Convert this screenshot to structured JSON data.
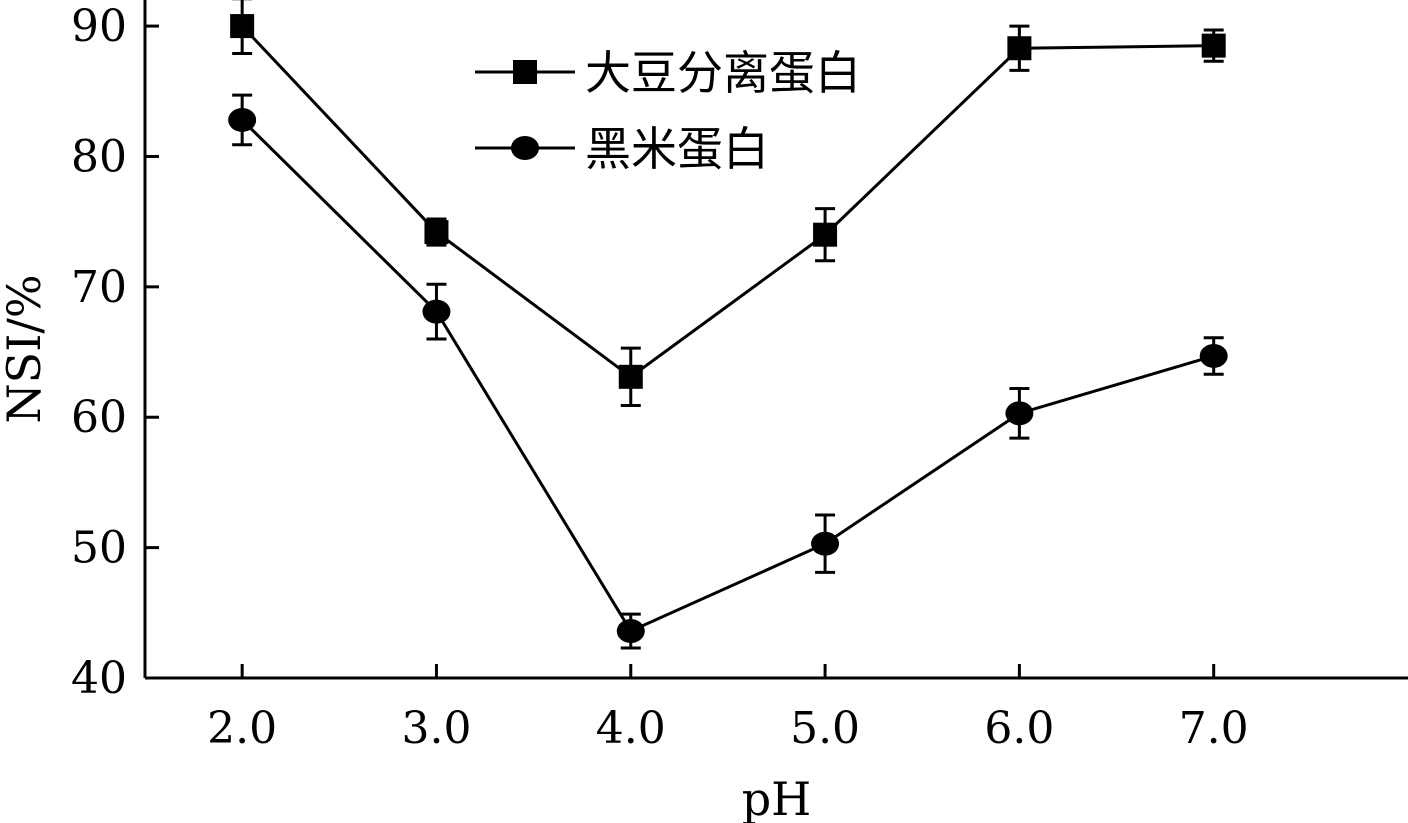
{
  "chart_data": {
    "type": "line",
    "xlabel": "pH",
    "ylabel": "NSI/%",
    "categories": [
      "2.0",
      "3.0",
      "4.0",
      "5.0",
      "6.0",
      "7.0"
    ],
    "x": [
      2.0,
      3.0,
      4.0,
      5.0,
      6.0,
      7.0
    ],
    "xlim": [
      1.5,
      8.0
    ],
    "ylim": [
      40,
      92
    ],
    "yticks": [
      40,
      50,
      60,
      70,
      80,
      90
    ],
    "grid": false,
    "legend_position": "top-center",
    "series": [
      {
        "name": "大豆分离蛋白",
        "marker": "square",
        "color": "#000000",
        "values": [
          90.0,
          74.2,
          63.1,
          74.0,
          88.3,
          88.5
        ],
        "error": [
          2.1,
          1.0,
          2.2,
          2.0,
          1.7,
          1.2
        ]
      },
      {
        "name": "黑米蛋白",
        "marker": "circle",
        "color": "#000000",
        "values": [
          82.8,
          68.1,
          43.6,
          50.3,
          60.3,
          64.7
        ],
        "error": [
          1.9,
          2.1,
          1.3,
          2.2,
          1.9,
          1.4
        ]
      }
    ]
  }
}
